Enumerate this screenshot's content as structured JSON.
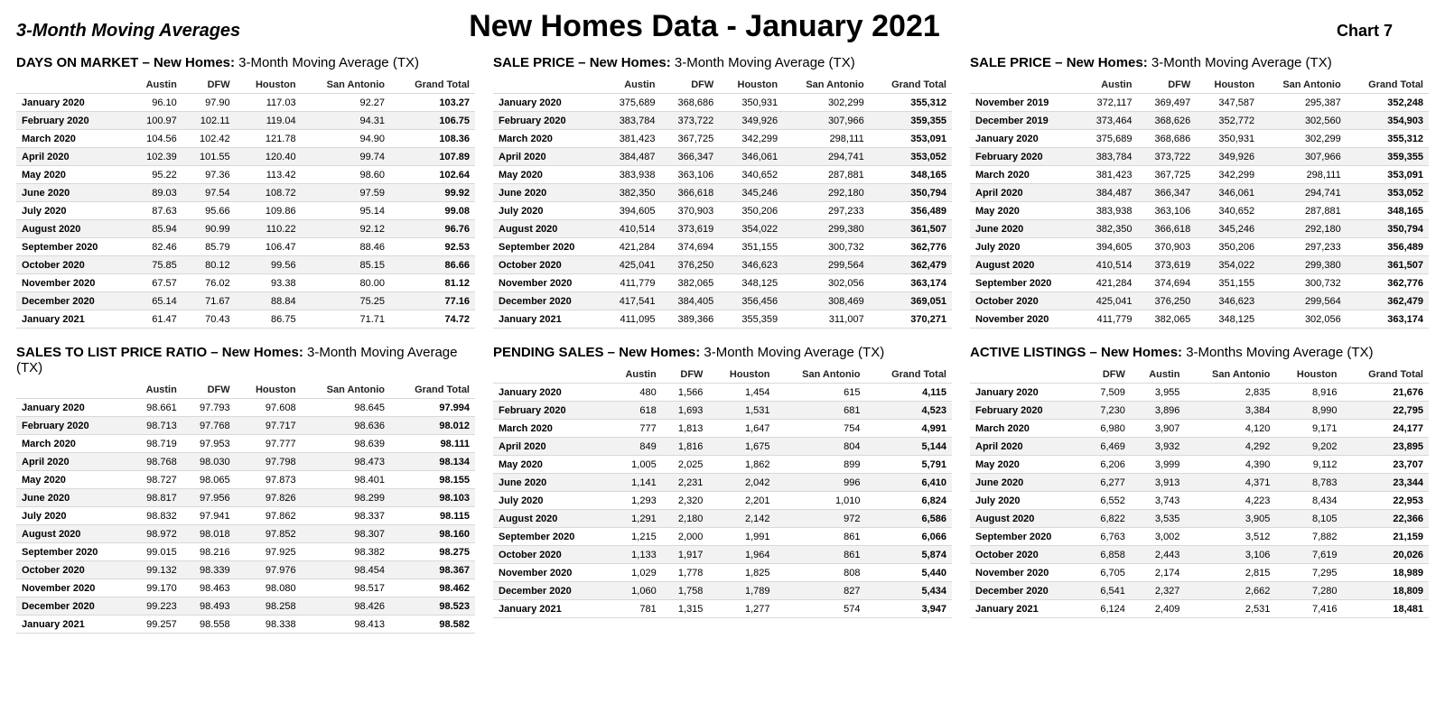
{
  "header": {
    "subtitle": "3-Month Moving Averages",
    "title": "New Homes Data - January 2021",
    "chartnum": "Chart 7"
  },
  "tables": [
    {
      "title_bold": "DAYS ON MARKET – New Homes:",
      "title_rest": " 3-Month Moving Average (TX)",
      "columns": [
        "",
        "Austin",
        "DFW",
        "Houston",
        "San Antonio",
        "Grand Total"
      ],
      "rows": [
        [
          "January 2020",
          "96.10",
          "97.90",
          "117.03",
          "92.27",
          "103.27"
        ],
        [
          "February 2020",
          "100.97",
          "102.11",
          "119.04",
          "94.31",
          "106.75"
        ],
        [
          "March 2020",
          "104.56",
          "102.42",
          "121.78",
          "94.90",
          "108.36"
        ],
        [
          "April 2020",
          "102.39",
          "101.55",
          "120.40",
          "99.74",
          "107.89"
        ],
        [
          "May 2020",
          "95.22",
          "97.36",
          "113.42",
          "98.60",
          "102.64"
        ],
        [
          "June 2020",
          "89.03",
          "97.54",
          "108.72",
          "97.59",
          "99.92"
        ],
        [
          "July 2020",
          "87.63",
          "95.66",
          "109.86",
          "95.14",
          "99.08"
        ],
        [
          "August 2020",
          "85.94",
          "90.99",
          "110.22",
          "92.12",
          "96.76"
        ],
        [
          "September 2020",
          "82.46",
          "85.79",
          "106.47",
          "88.46",
          "92.53"
        ],
        [
          "October 2020",
          "75.85",
          "80.12",
          "99.56",
          "85.15",
          "86.66"
        ],
        [
          "November 2020",
          "67.57",
          "76.02",
          "93.38",
          "80.00",
          "81.12"
        ],
        [
          "December 2020",
          "65.14",
          "71.67",
          "88.84",
          "75.25",
          "77.16"
        ],
        [
          "January 2021",
          "61.47",
          "70.43",
          "86.75",
          "71.71",
          "74.72"
        ]
      ]
    },
    {
      "title_bold": "SALE PRICE – New Homes:",
      "title_rest": " 3-Month Moving Average (TX)",
      "columns": [
        "",
        "Austin",
        "DFW",
        "Houston",
        "San Antonio",
        "Grand Total"
      ],
      "rows": [
        [
          "January 2020",
          "375,689",
          "368,686",
          "350,931",
          "302,299",
          "355,312"
        ],
        [
          "February 2020",
          "383,784",
          "373,722",
          "349,926",
          "307,966",
          "359,355"
        ],
        [
          "March 2020",
          "381,423",
          "367,725",
          "342,299",
          "298,111",
          "353,091"
        ],
        [
          "April 2020",
          "384,487",
          "366,347",
          "346,061",
          "294,741",
          "353,052"
        ],
        [
          "May 2020",
          "383,938",
          "363,106",
          "340,652",
          "287,881",
          "348,165"
        ],
        [
          "June 2020",
          "382,350",
          "366,618",
          "345,246",
          "292,180",
          "350,794"
        ],
        [
          "July 2020",
          "394,605",
          "370,903",
          "350,206",
          "297,233",
          "356,489"
        ],
        [
          "August 2020",
          "410,514",
          "373,619",
          "354,022",
          "299,380",
          "361,507"
        ],
        [
          "September 2020",
          "421,284",
          "374,694",
          "351,155",
          "300,732",
          "362,776"
        ],
        [
          "October 2020",
          "425,041",
          "376,250",
          "346,623",
          "299,564",
          "362,479"
        ],
        [
          "November 2020",
          "411,779",
          "382,065",
          "348,125",
          "302,056",
          "363,174"
        ],
        [
          "December 2020",
          "417,541",
          "384,405",
          "356,456",
          "308,469",
          "369,051"
        ],
        [
          "January 2021",
          "411,095",
          "389,366",
          "355,359",
          "311,007",
          "370,271"
        ]
      ]
    },
    {
      "title_bold": "SALE PRICE – New Homes:",
      "title_rest": " 3-Month Moving Average (TX)",
      "columns": [
        "",
        "Austin",
        "DFW",
        "Houston",
        "San Antonio",
        "Grand Total"
      ],
      "rows": [
        [
          "November 2019",
          "372,117",
          "369,497",
          "347,587",
          "295,387",
          "352,248"
        ],
        [
          "December 2019",
          "373,464",
          "368,626",
          "352,772",
          "302,560",
          "354,903"
        ],
        [
          "January 2020",
          "375,689",
          "368,686",
          "350,931",
          "302,299",
          "355,312"
        ],
        [
          "February 2020",
          "383,784",
          "373,722",
          "349,926",
          "307,966",
          "359,355"
        ],
        [
          "March 2020",
          "381,423",
          "367,725",
          "342,299",
          "298,111",
          "353,091"
        ],
        [
          "April 2020",
          "384,487",
          "366,347",
          "346,061",
          "294,741",
          "353,052"
        ],
        [
          "May 2020",
          "383,938",
          "363,106",
          "340,652",
          "287,881",
          "348,165"
        ],
        [
          "June 2020",
          "382,350",
          "366,618",
          "345,246",
          "292,180",
          "350,794"
        ],
        [
          "July 2020",
          "394,605",
          "370,903",
          "350,206",
          "297,233",
          "356,489"
        ],
        [
          "August 2020",
          "410,514",
          "373,619",
          "354,022",
          "299,380",
          "361,507"
        ],
        [
          "September 2020",
          "421,284",
          "374,694",
          "351,155",
          "300,732",
          "362,776"
        ],
        [
          "October 2020",
          "425,041",
          "376,250",
          "346,623",
          "299,564",
          "362,479"
        ],
        [
          "November 2020",
          "411,779",
          "382,065",
          "348,125",
          "302,056",
          "363,174"
        ]
      ]
    },
    {
      "title_bold": "SALES TO LIST PRICE RATIO – New Homes:",
      "title_rest": " 3-Month Moving Average (TX)",
      "columns": [
        "",
        "Austin",
        "DFW",
        "Houston",
        "San Antonio",
        "Grand Total"
      ],
      "rows": [
        [
          "January 2020",
          "98.661",
          "97.793",
          "97.608",
          "98.645",
          "97.994"
        ],
        [
          "February 2020",
          "98.713",
          "97.768",
          "97.717",
          "98.636",
          "98.012"
        ],
        [
          "March 2020",
          "98.719",
          "97.953",
          "97.777",
          "98.639",
          "98.111"
        ],
        [
          "April 2020",
          "98.768",
          "98.030",
          "97.798",
          "98.473",
          "98.134"
        ],
        [
          "May 2020",
          "98.727",
          "98.065",
          "97.873",
          "98.401",
          "98.155"
        ],
        [
          "June 2020",
          "98.817",
          "97.956",
          "97.826",
          "98.299",
          "98.103"
        ],
        [
          "July 2020",
          "98.832",
          "97.941",
          "97.862",
          "98.337",
          "98.115"
        ],
        [
          "August 2020",
          "98.972",
          "98.018",
          "97.852",
          "98.307",
          "98.160"
        ],
        [
          "September 2020",
          "99.015",
          "98.216",
          "97.925",
          "98.382",
          "98.275"
        ],
        [
          "October 2020",
          "99.132",
          "98.339",
          "97.976",
          "98.454",
          "98.367"
        ],
        [
          "November 2020",
          "99.170",
          "98.463",
          "98.080",
          "98.517",
          "98.462"
        ],
        [
          "December 2020",
          "99.223",
          "98.493",
          "98.258",
          "98.426",
          "98.523"
        ],
        [
          "January 2021",
          "99.257",
          "98.558",
          "98.338",
          "98.413",
          "98.582"
        ]
      ]
    },
    {
      "title_bold": "PENDING SALES – New Homes:",
      "title_rest": " 3-Month Moving Average (TX)",
      "columns": [
        "",
        "Austin",
        "DFW",
        "Houston",
        "San Antonio",
        "Grand Total"
      ],
      "rows": [
        [
          "January 2020",
          "480",
          "1,566",
          "1,454",
          "615",
          "4,115"
        ],
        [
          "February 2020",
          "618",
          "1,693",
          "1,531",
          "681",
          "4,523"
        ],
        [
          "March 2020",
          "777",
          "1,813",
          "1,647",
          "754",
          "4,991"
        ],
        [
          "April 2020",
          "849",
          "1,816",
          "1,675",
          "804",
          "5,144"
        ],
        [
          "May 2020",
          "1,005",
          "2,025",
          "1,862",
          "899",
          "5,791"
        ],
        [
          "June 2020",
          "1,141",
          "2,231",
          "2,042",
          "996",
          "6,410"
        ],
        [
          "July 2020",
          "1,293",
          "2,320",
          "2,201",
          "1,010",
          "6,824"
        ],
        [
          "August 2020",
          "1,291",
          "2,180",
          "2,142",
          "972",
          "6,586"
        ],
        [
          "September 2020",
          "1,215",
          "2,000",
          "1,991",
          "861",
          "6,066"
        ],
        [
          "October 2020",
          "1,133",
          "1,917",
          "1,964",
          "861",
          "5,874"
        ],
        [
          "November 2020",
          "1,029",
          "1,778",
          "1,825",
          "808",
          "5,440"
        ],
        [
          "December 2020",
          "1,060",
          "1,758",
          "1,789",
          "827",
          "5,434"
        ],
        [
          "January 2021",
          "781",
          "1,315",
          "1,277",
          "574",
          "3,947"
        ]
      ]
    },
    {
      "title_bold": "ACTIVE LISTINGS – New Homes:",
      "title_rest": " 3-Months  Moving Average (TX)",
      "columns": [
        "",
        "DFW",
        "Austin",
        "San Antonio",
        "Houston",
        "Grand Total"
      ],
      "rows": [
        [
          "January 2020",
          "7,509",
          "3,955",
          "2,835",
          "8,916",
          "21,676"
        ],
        [
          "February 2020",
          "7,230",
          "3,896",
          "3,384",
          "8,990",
          "22,795"
        ],
        [
          "March 2020",
          "6,980",
          "3,907",
          "4,120",
          "9,171",
          "24,177"
        ],
        [
          "April 2020",
          "6,469",
          "3,932",
          "4,292",
          "9,202",
          "23,895"
        ],
        [
          "May 2020",
          "6,206",
          "3,999",
          "4,390",
          "9,112",
          "23,707"
        ],
        [
          "June 2020",
          "6,277",
          "3,913",
          "4,371",
          "8,783",
          "23,344"
        ],
        [
          "July 2020",
          "6,552",
          "3,743",
          "4,223",
          "8,434",
          "22,953"
        ],
        [
          "August 2020",
          "6,822",
          "3,535",
          "3,905",
          "8,105",
          "22,366"
        ],
        [
          "September 2020",
          "6,763",
          "3,002",
          "3,512",
          "7,882",
          "21,159"
        ],
        [
          "October 2020",
          "6,858",
          "2,443",
          "3,106",
          "7,619",
          "20,026"
        ],
        [
          "November 2020",
          "6,705",
          "2,174",
          "2,815",
          "7,295",
          "18,989"
        ],
        [
          "December 2020",
          "6,541",
          "2,327",
          "2,662",
          "7,280",
          "18,809"
        ],
        [
          "January 2021",
          "6,124",
          "2,409",
          "2,531",
          "7,416",
          "18,481"
        ]
      ]
    }
  ]
}
